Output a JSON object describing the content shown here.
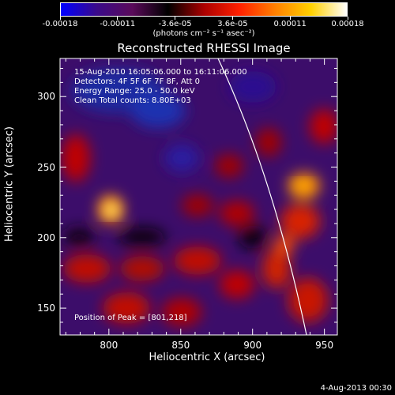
{
  "colorbar": {
    "tick_labels": [
      "-0.00018",
      "-0.00011",
      "-3.6e-05",
      "3.6e-05",
      "0.00011",
      "0.00018"
    ],
    "units": "(photons cm⁻² s⁻¹ asec⁻²)",
    "colors": [
      "#0000ff",
      "#3a0a8a",
      "#5a0a5a",
      "#000000",
      "#aa0000",
      "#ff2000",
      "#ff8000",
      "#ffd000",
      "#ffffff"
    ]
  },
  "title": "Reconstructed RHESSI Image",
  "annotations": {
    "time_range": "15-Aug-2010 16:05:06.000 to 16:11:06.000",
    "detectors": "Detectors: 4F 5F 6F 7F 8F, Att 0",
    "energy": "Energy Range: 25.0 - 50.0 keV",
    "clean": "Clean    Total counts: 8.80E+03",
    "peak": "Position of Peak = [801,218]"
  },
  "axes": {
    "xlabel": "Heliocentric X (arcsec)",
    "ylabel": "Heliocentric Y (arcsec)",
    "xticks": [
      "800",
      "850",
      "900",
      "950"
    ],
    "yticks": [
      "150",
      "200",
      "250",
      "300"
    ],
    "xlim": [
      766,
      959
    ],
    "ylim": [
      131,
      327
    ]
  },
  "footer": {
    "date": "4-Aug-2013 00:30"
  }
}
